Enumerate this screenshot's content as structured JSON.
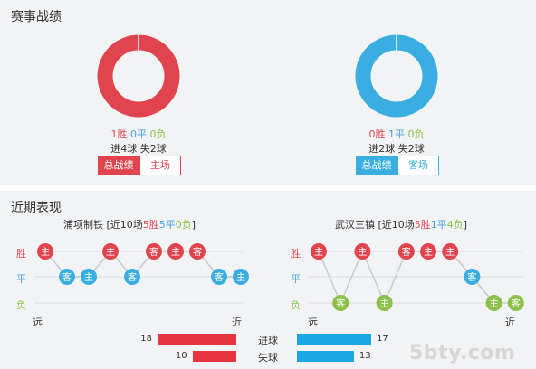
{
  "record": {
    "title": "赛事战绩",
    "teams": [
      {
        "wins": "1胜",
        "draws": "0平",
        "losses": "0负",
        "goals": "进4球 失2球",
        "tab_overall": "总战绩",
        "tab_venue": "主场",
        "color": "#e0454f"
      },
      {
        "wins": "0胜",
        "draws": "1平",
        "losses": "0负",
        "goals": "进2球 失2球",
        "tab_overall": "总战绩",
        "tab_venue": "客场",
        "color": "#3aaee0"
      }
    ]
  },
  "recent": {
    "title": "近期表现",
    "row_labels": {
      "win": "胜",
      "draw": "平",
      "loss": "负"
    },
    "far_label": "远",
    "near_label": "近",
    "teams": [
      {
        "name": "浦项制铁",
        "summary_prefix": "[近10场",
        "wins": "5胜",
        "draws": "5平",
        "losses": "0负",
        "summary_suffix": "]",
        "results": [
          {
            "r": "W",
            "label": "主"
          },
          {
            "r": "D",
            "label": "客"
          },
          {
            "r": "D",
            "label": "主"
          },
          {
            "r": "W",
            "label": "主"
          },
          {
            "r": "D",
            "label": "客"
          },
          {
            "r": "W",
            "label": "客"
          },
          {
            "r": "W",
            "label": "主"
          },
          {
            "r": "W",
            "label": "客"
          },
          {
            "r": "D",
            "label": "客"
          },
          {
            "r": "D",
            "label": "主"
          }
        ]
      },
      {
        "name": "武汉三镇",
        "summary_prefix": "[近10场",
        "wins": "5胜",
        "draws": "1平",
        "losses": "4负",
        "summary_suffix": "]",
        "results": [
          {
            "r": "W",
            "label": "主"
          },
          {
            "r": "L",
            "label": "客"
          },
          {
            "r": "W",
            "label": "主"
          },
          {
            "r": "L",
            "label": "主"
          },
          {
            "r": "W",
            "label": "客"
          },
          {
            "r": "W",
            "label": "主"
          },
          {
            "r": "W",
            "label": "主"
          },
          {
            "r": "D",
            "label": "客"
          },
          {
            "r": "L",
            "label": "主"
          },
          {
            "r": "L",
            "label": "客"
          }
        ]
      }
    ],
    "goals": {
      "scored_label": "进球",
      "conceded_label": "失球",
      "home_scored": 18,
      "away_scored": 17,
      "home_conceded": 10,
      "away_conceded": 13,
      "home_color": "#e8343f",
      "away_color": "#19a7e6"
    },
    "colors": {
      "win": "#e0454f",
      "draw": "#3aaee0",
      "loss": "#8dc04a"
    }
  },
  "watermark": "5bty.com"
}
